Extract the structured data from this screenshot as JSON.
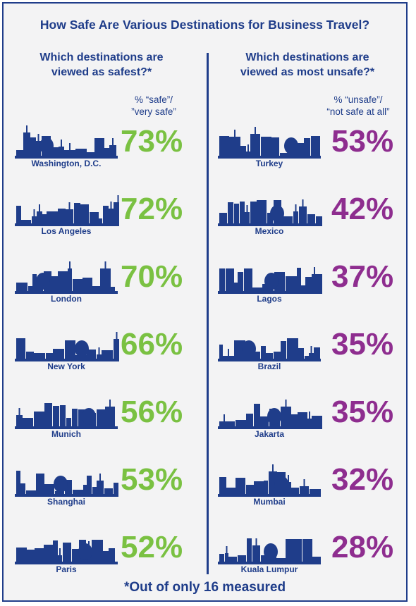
{
  "title": "How Safe Are Various Destinations for Business Travel?",
  "left": {
    "heading_line1": "Which destinations are",
    "heading_line2": "viewed as safest?*",
    "metric_line1": "% “safe”/",
    "metric_line2": "”very safe”"
  },
  "right": {
    "heading_line1": "Which destinations are",
    "heading_line2": "viewed as most unsafe?*",
    "metric_line1": "% “unsafe”/",
    "metric_line2": "“not safe at all”"
  },
  "footnote": "*Out of only 16 measured",
  "colors": {
    "brand": "#1f3d8a",
    "safe": "#7ac142",
    "unsafe": "#8e2d8f",
    "background": "#f3f3f4"
  },
  "chart_data": [
    {
      "type": "table",
      "title": "Which destinations are viewed as safest?*",
      "value_label": "% “safe”/ ”very safe”",
      "categories": [
        "Washington, D.C.",
        "Los Angeles",
        "London",
        "New York",
        "Munich",
        "Shanghai",
        "Paris"
      ],
      "values": [
        73,
        72,
        70,
        66,
        56,
        53,
        52
      ],
      "display": [
        "73%",
        "72%",
        "70%",
        "66%",
        "56%",
        "53%",
        "52%"
      ]
    },
    {
      "type": "table",
      "title": "Which destinations are viewed as most unsafe?*",
      "value_label": "% “unsafe”/ “not safe at all”",
      "categories": [
        "Turkey",
        "Mexico",
        "Lagos",
        "Brazil",
        "Jakarta",
        "Mumbai",
        "Kuala Lumpur"
      ],
      "values": [
        53,
        42,
        37,
        35,
        35,
        32,
        28
      ],
      "display": [
        "53%",
        "42%",
        "37%",
        "35%",
        "35%",
        "32%",
        "28%"
      ]
    }
  ]
}
